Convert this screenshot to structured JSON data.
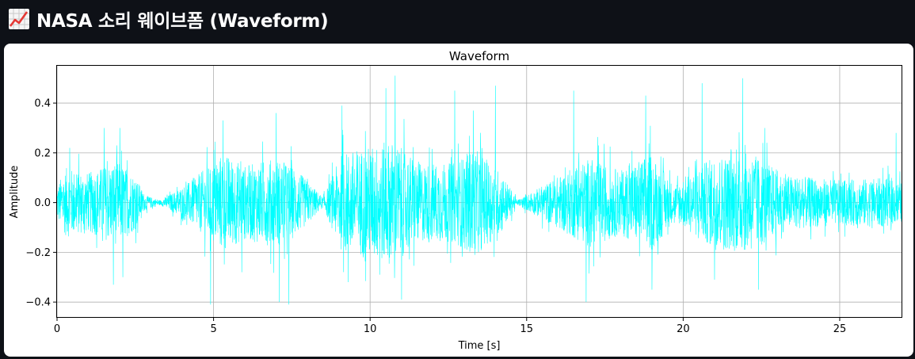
{
  "header": {
    "icon": "chart-increasing-icon",
    "title": "NASA 소리 웨이브폼 (Waveform)"
  },
  "chart_data": {
    "type": "line",
    "title": "Waveform",
    "xlabel": "Time [s]",
    "ylabel": "Amplitude",
    "xlim": [
      0,
      27
    ],
    "ylim": [
      -0.46,
      0.55
    ],
    "x_ticks": [
      0,
      5,
      10,
      15,
      20,
      25
    ],
    "y_ticks": [
      -0.4,
      -0.2,
      0.0,
      0.2,
      0.4
    ],
    "y_tick_labels": [
      "−0.4",
      "−0.2",
      "0.0",
      "0.2",
      "0.4"
    ],
    "grid": true,
    "line_color": "#00ffff",
    "series": [
      {
        "envelope": [
          {
            "t": 0.0,
            "amp": 0.07
          },
          {
            "t": 0.3,
            "amp": 0.14
          },
          {
            "t": 1.0,
            "amp": 0.12
          },
          {
            "t": 1.9,
            "amp": 0.17
          },
          {
            "t": 2.5,
            "amp": 0.11
          },
          {
            "t": 2.8,
            "amp": 0.03
          },
          {
            "t": 3.3,
            "amp": 0.01
          },
          {
            "t": 3.7,
            "amp": 0.04
          },
          {
            "t": 4.3,
            "amp": 0.09
          },
          {
            "t": 5.3,
            "amp": 0.2
          },
          {
            "t": 6.0,
            "amp": 0.15
          },
          {
            "t": 7.0,
            "amp": 0.18
          },
          {
            "t": 7.6,
            "amp": 0.14
          },
          {
            "t": 8.2,
            "amp": 0.06
          },
          {
            "t": 8.5,
            "amp": 0.02
          },
          {
            "t": 9.1,
            "amp": 0.2
          },
          {
            "t": 10.7,
            "amp": 0.25
          },
          {
            "t": 11.6,
            "amp": 0.16
          },
          {
            "t": 12.7,
            "amp": 0.16
          },
          {
            "t": 13.3,
            "amp": 0.22
          },
          {
            "t": 14.2,
            "amp": 0.12
          },
          {
            "t": 14.7,
            "amp": 0.01
          },
          {
            "t": 15.4,
            "amp": 0.06
          },
          {
            "t": 16.2,
            "amp": 0.12
          },
          {
            "t": 17.0,
            "amp": 0.18
          },
          {
            "t": 18.0,
            "amp": 0.13
          },
          {
            "t": 19.0,
            "amp": 0.2
          },
          {
            "t": 19.7,
            "amp": 0.07
          },
          {
            "t": 20.0,
            "amp": 0.1
          },
          {
            "t": 21.0,
            "amp": 0.19
          },
          {
            "t": 22.2,
            "amp": 0.2
          },
          {
            "t": 23.3,
            "amp": 0.11
          },
          {
            "t": 25.0,
            "amp": 0.09
          },
          {
            "t": 26.4,
            "amp": 0.1
          },
          {
            "t": 27.0,
            "amp": 0.08
          }
        ],
        "peaks": [
          {
            "t": 0.4,
            "v": 0.22
          },
          {
            "t": 1.5,
            "v": 0.3
          },
          {
            "t": 1.8,
            "v": -0.33
          },
          {
            "t": 2.0,
            "v": 0.3
          },
          {
            "t": 2.1,
            "v": -0.3
          },
          {
            "t": 4.9,
            "v": -0.41
          },
          {
            "t": 5.3,
            "v": 0.33
          },
          {
            "t": 5.9,
            "v": -0.28
          },
          {
            "t": 7.0,
            "v": 0.36
          },
          {
            "t": 7.1,
            "v": -0.4
          },
          {
            "t": 7.4,
            "v": -0.41
          },
          {
            "t": 9.1,
            "v": 0.39
          },
          {
            "t": 9.3,
            "v": -0.32
          },
          {
            "t": 10.3,
            "v": -0.29
          },
          {
            "t": 10.5,
            "v": 0.46
          },
          {
            "t": 10.8,
            "v": 0.51
          },
          {
            "t": 11.0,
            "v": -0.39
          },
          {
            "t": 12.7,
            "v": 0.45
          },
          {
            "t": 13.3,
            "v": 0.37
          },
          {
            "t": 14.0,
            "v": 0.47
          },
          {
            "t": 16.5,
            "v": 0.45
          },
          {
            "t": 16.9,
            "v": -0.4
          },
          {
            "t": 18.8,
            "v": 0.43
          },
          {
            "t": 19.0,
            "v": -0.35
          },
          {
            "t": 20.6,
            "v": 0.48
          },
          {
            "t": 21.0,
            "v": -0.31
          },
          {
            "t": 21.9,
            "v": 0.5
          },
          {
            "t": 22.4,
            "v": -0.35
          },
          {
            "t": 22.6,
            "v": 0.3
          },
          {
            "t": 26.8,
            "v": 0.28
          }
        ]
      }
    ]
  }
}
